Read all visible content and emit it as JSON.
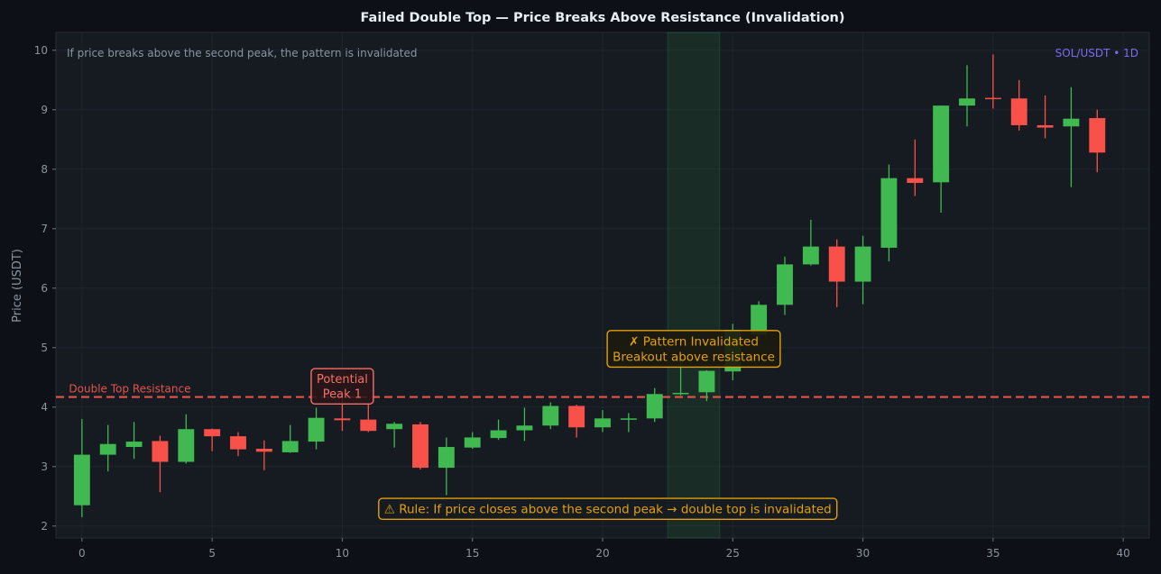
{
  "chart_data": {
    "type": "candlestick",
    "title": "Failed Double Top — Price Breaks Above Resistance (Invalidation)",
    "subtitle": "If price breaks above the second peak, the pattern is invalidated",
    "symbol_tag": "SOL/USDT • 1D",
    "xlabel": "",
    "ylabel": "Price (USDT)",
    "xlim": [
      -1,
      41
    ],
    "ylim": [
      1.8,
      10.3
    ],
    "x_ticks": [
      0,
      5,
      10,
      15,
      20,
      25,
      30,
      35,
      40
    ],
    "y_ticks": [
      2,
      3,
      4,
      5,
      6,
      7,
      8,
      9,
      10
    ],
    "grid": true,
    "colors": {
      "up": "#3fb950",
      "down": "#f85149",
      "resistance": "#e5534b",
      "annotation": "#e3a008",
      "peak_label": "#f47067",
      "symbol": "#7c6cf0",
      "highlight": "#2ea043"
    },
    "resistance": {
      "value": 4.17,
      "label": "Double Top Resistance"
    },
    "highlight_zone": {
      "x": [
        22.5,
        24.5
      ]
    },
    "annotations": [
      {
        "id": "peak1",
        "lines": [
          "Potential",
          "Peak 1"
        ],
        "x": 10,
        "y": 4.35
      },
      {
        "id": "invalidated",
        "lines": [
          "✗ Pattern Invalidated",
          "Breakout above resistance"
        ],
        "x": 23.5,
        "y": 4.98
      },
      {
        "id": "rule",
        "lines": [
          "⚠ Rule: If price closes above the second peak → double top is invalidated"
        ],
        "x": 20.2,
        "y": 2.29
      }
    ],
    "candles": [
      {
        "x": 0,
        "open": 2.35,
        "high": 3.8,
        "low": 2.15,
        "close": 3.2
      },
      {
        "x": 1,
        "open": 3.2,
        "high": 3.7,
        "low": 2.92,
        "close": 3.38
      },
      {
        "x": 2,
        "open": 3.33,
        "high": 3.75,
        "low": 3.13,
        "close": 3.42
      },
      {
        "x": 3,
        "open": 3.43,
        "high": 3.52,
        "low": 2.57,
        "close": 3.08
      },
      {
        "x": 4,
        "open": 3.08,
        "high": 3.88,
        "low": 3.05,
        "close": 3.63
      },
      {
        "x": 5,
        "open": 3.63,
        "high": 3.64,
        "low": 3.26,
        "close": 3.51
      },
      {
        "x": 6,
        "open": 3.51,
        "high": 3.58,
        "low": 3.18,
        "close": 3.29
      },
      {
        "x": 7,
        "open": 3.3,
        "high": 3.44,
        "low": 2.94,
        "close": 3.25
      },
      {
        "x": 8,
        "open": 3.24,
        "high": 3.7,
        "low": 3.23,
        "close": 3.43
      },
      {
        "x": 9,
        "open": 3.42,
        "high": 3.99,
        "low": 3.29,
        "close": 3.82
      },
      {
        "x": 10,
        "open": 3.81,
        "high": 4.15,
        "low": 3.6,
        "close": 3.78
      },
      {
        "x": 11,
        "open": 3.79,
        "high": 4.05,
        "low": 3.58,
        "close": 3.6
      },
      {
        "x": 12,
        "open": 3.63,
        "high": 3.75,
        "low": 3.32,
        "close": 3.72
      },
      {
        "x": 13,
        "open": 3.71,
        "high": 3.75,
        "low": 2.95,
        "close": 2.98
      },
      {
        "x": 14,
        "open": 2.98,
        "high": 3.49,
        "low": 2.52,
        "close": 3.33
      },
      {
        "x": 15,
        "open": 3.32,
        "high": 3.58,
        "low": 3.3,
        "close": 3.49
      },
      {
        "x": 16,
        "open": 3.48,
        "high": 3.79,
        "low": 3.45,
        "close": 3.61
      },
      {
        "x": 17,
        "open": 3.61,
        "high": 3.99,
        "low": 3.43,
        "close": 3.69
      },
      {
        "x": 18,
        "open": 3.69,
        "high": 4.08,
        "low": 3.63,
        "close": 4.02
      },
      {
        "x": 19,
        "open": 4.02,
        "high": 4.04,
        "low": 3.49,
        "close": 3.66
      },
      {
        "x": 20,
        "open": 3.66,
        "high": 3.95,
        "low": 3.58,
        "close": 3.81
      },
      {
        "x": 21,
        "open": 3.79,
        "high": 3.9,
        "low": 3.58,
        "close": 3.81
      },
      {
        "x": 22,
        "open": 3.81,
        "high": 4.32,
        "low": 3.75,
        "close": 4.22
      },
      {
        "x": 23,
        "open": 4.22,
        "high": 4.8,
        "low": 4.2,
        "close": 4.24
      },
      {
        "x": 24,
        "open": 4.25,
        "high": 4.62,
        "low": 4.1,
        "close": 4.61
      },
      {
        "x": 25,
        "open": 4.6,
        "high": 5.4,
        "low": 4.45,
        "close": 5.3
      },
      {
        "x": 26,
        "open": 5.22,
        "high": 5.78,
        "low": 5.12,
        "close": 5.72
      },
      {
        "x": 27,
        "open": 5.72,
        "high": 6.53,
        "low": 5.55,
        "close": 6.4
      },
      {
        "x": 28,
        "open": 6.4,
        "high": 7.15,
        "low": 6.38,
        "close": 6.7
      },
      {
        "x": 29,
        "open": 6.7,
        "high": 6.82,
        "low": 5.68,
        "close": 6.11
      },
      {
        "x": 30,
        "open": 6.11,
        "high": 6.88,
        "low": 5.73,
        "close": 6.7
      },
      {
        "x": 31,
        "open": 6.68,
        "high": 8.08,
        "low": 6.45,
        "close": 7.85
      },
      {
        "x": 32,
        "open": 7.85,
        "high": 8.5,
        "low": 7.55,
        "close": 7.77
      },
      {
        "x": 33,
        "open": 7.78,
        "high": 9.07,
        "low": 7.27,
        "close": 9.07
      },
      {
        "x": 34,
        "open": 9.07,
        "high": 9.75,
        "low": 8.72,
        "close": 9.19
      },
      {
        "x": 35,
        "open": 9.2,
        "high": 9.93,
        "low": 9.02,
        "close": 9.18
      },
      {
        "x": 36,
        "open": 9.19,
        "high": 9.5,
        "low": 8.65,
        "close": 8.74
      },
      {
        "x": 37,
        "open": 8.74,
        "high": 9.24,
        "low": 8.52,
        "close": 8.7
      },
      {
        "x": 38,
        "open": 8.72,
        "high": 9.38,
        "low": 7.7,
        "close": 8.85
      },
      {
        "x": 39,
        "open": 8.86,
        "high": 9.0,
        "low": 7.95,
        "close": 8.28
      }
    ]
  }
}
